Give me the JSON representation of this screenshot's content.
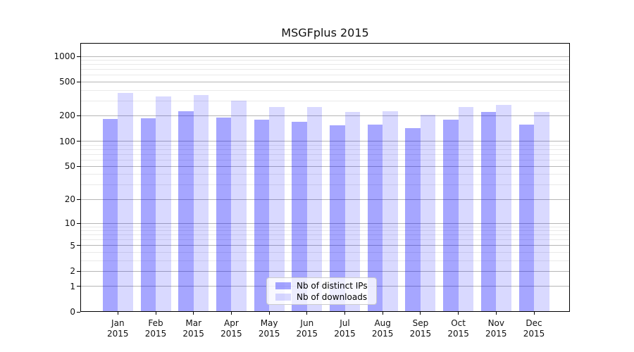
{
  "title": "MSGFplus 2015",
  "chart_data": {
    "type": "bar",
    "title": "MSGFplus 2015",
    "categories": [
      "Jan",
      "Feb",
      "Mar",
      "Apr",
      "May",
      "Jun",
      "Jul",
      "Aug",
      "Sep",
      "Oct",
      "Nov",
      "Dec"
    ],
    "year_label": "2015",
    "series": [
      {
        "name": "Nb of distinct IPs",
        "color": "#0000ff",
        "alpha": 0.35,
        "values": [
          183,
          187,
          226,
          191,
          180,
          171,
          153,
          156,
          144,
          180,
          222,
          156
        ]
      },
      {
        "name": "Nb of downloads",
        "color": "#0000ff",
        "alpha": 0.15,
        "values": [
          371,
          335,
          352,
          303,
          255,
          255,
          223,
          226,
          206,
          254,
          268,
          223
        ]
      }
    ],
    "xlabel": "",
    "ylabel": "",
    "yscale": "log1p",
    "ylim": [
      0,
      1435
    ],
    "y_major_ticks": [
      0,
      1,
      2,
      5,
      10,
      20,
      50,
      100,
      200,
      500,
      1000
    ],
    "y_minor_gridlines": [
      3,
      4,
      6,
      7,
      8,
      9,
      30,
      40,
      60,
      70,
      80,
      90,
      300,
      400,
      600,
      700,
      800,
      900
    ],
    "grid": true,
    "legend_position": "inside bottom-center"
  },
  "colors": {
    "background": "#ffffff",
    "grid_major": "#b6b6b6",
    "grid_minor": "#e9e9e9",
    "axis": "#000000",
    "text": "#111111",
    "legend_border": "#cccccc"
  }
}
